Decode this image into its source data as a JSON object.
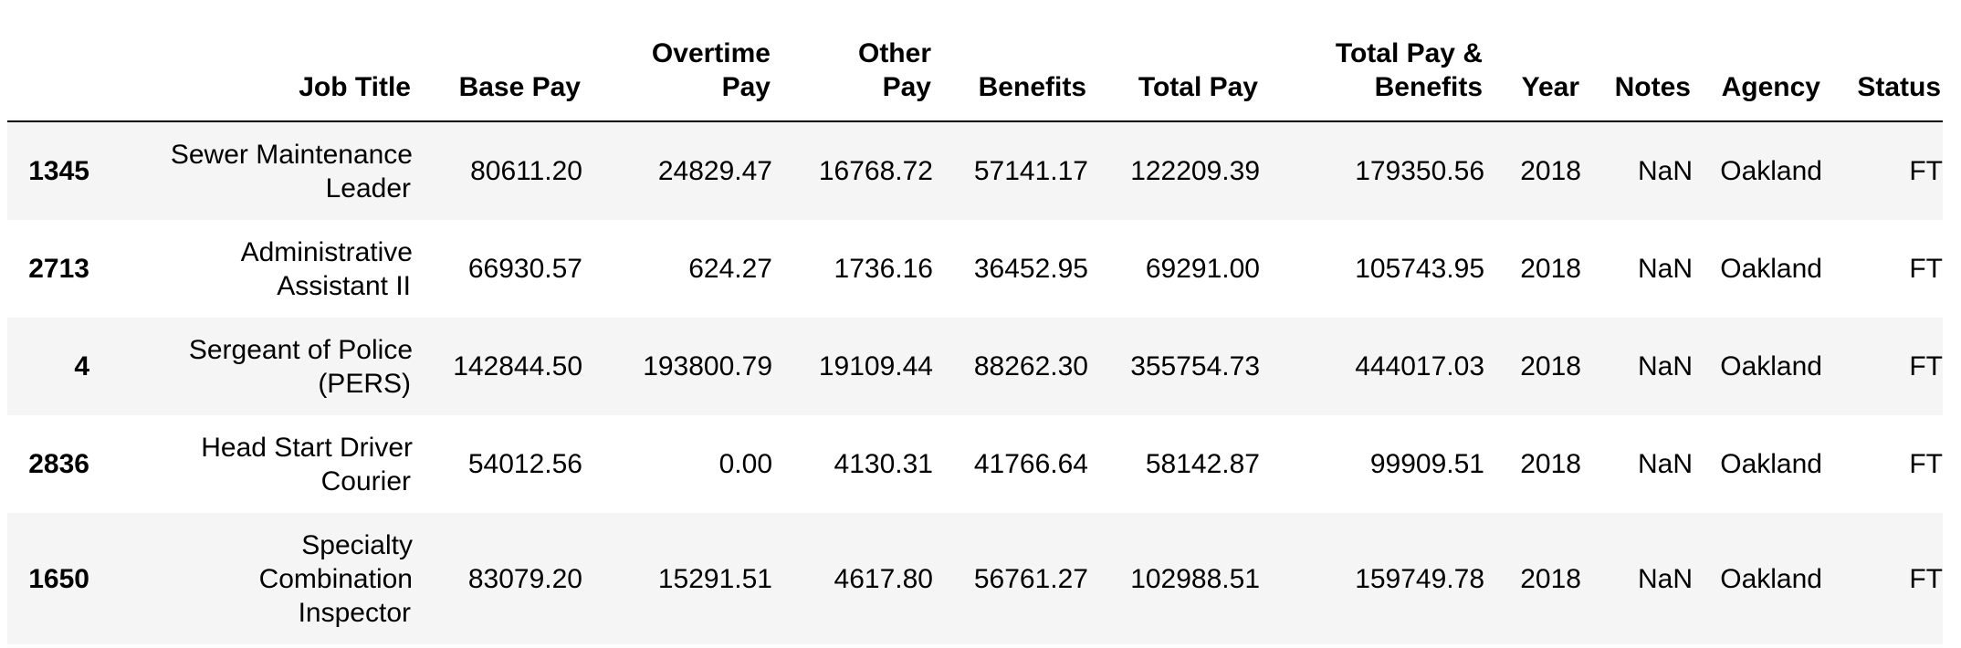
{
  "columns": [
    "",
    "Job Title",
    "Base Pay",
    "Overtime Pay",
    "Other Pay",
    "Benefits",
    "Total Pay",
    "Total Pay & Benefits",
    "Year",
    "Notes",
    "Agency",
    "Status"
  ],
  "header": {
    "job_title": "Job Title",
    "base_pay": "Base Pay",
    "overtime_pay_1": "Overtime",
    "overtime_pay_2": "Pay",
    "other_pay_1": "Other",
    "other_pay_2": "Pay",
    "benefits": "Benefits",
    "total_pay": "Total Pay",
    "total_pay_benefits_1": "Total Pay &",
    "total_pay_benefits_2": "Benefits",
    "year": "Year",
    "notes": "Notes",
    "agency": "Agency",
    "status": "Status"
  },
  "rows": [
    {
      "index": "1345",
      "job_title_1": "Sewer Maintenance",
      "job_title_2": "Leader",
      "job_title_3": "",
      "base_pay": "80611.20",
      "overtime_pay": "24829.47",
      "other_pay": "16768.72",
      "benefits": "57141.17",
      "total_pay": "122209.39",
      "total_pay_benefits": "179350.56",
      "year": "2018",
      "notes": "NaN",
      "agency": "Oakland",
      "status": "FT"
    },
    {
      "index": "2713",
      "job_title_1": "Administrative",
      "job_title_2": "Assistant II",
      "job_title_3": "",
      "base_pay": "66930.57",
      "overtime_pay": "624.27",
      "other_pay": "1736.16",
      "benefits": "36452.95",
      "total_pay": "69291.00",
      "total_pay_benefits": "105743.95",
      "year": "2018",
      "notes": "NaN",
      "agency": "Oakland",
      "status": "FT"
    },
    {
      "index": "4",
      "job_title_1": "Sergeant of Police",
      "job_title_2": "(PERS)",
      "job_title_3": "",
      "base_pay": "142844.50",
      "overtime_pay": "193800.79",
      "other_pay": "19109.44",
      "benefits": "88262.30",
      "total_pay": "355754.73",
      "total_pay_benefits": "444017.03",
      "year": "2018",
      "notes": "NaN",
      "agency": "Oakland",
      "status": "FT"
    },
    {
      "index": "2836",
      "job_title_1": "Head Start Driver",
      "job_title_2": "Courier",
      "job_title_3": "",
      "base_pay": "54012.56",
      "overtime_pay": "0.00",
      "other_pay": "4130.31",
      "benefits": "41766.64",
      "total_pay": "58142.87",
      "total_pay_benefits": "99909.51",
      "year": "2018",
      "notes": "NaN",
      "agency": "Oakland",
      "status": "FT"
    },
    {
      "index": "1650",
      "job_title_1": "Specialty",
      "job_title_2": "Combination",
      "job_title_3": "Inspector",
      "base_pay": "83079.20",
      "overtime_pay": "15291.51",
      "other_pay": "4617.80",
      "benefits": "56761.27",
      "total_pay": "102988.51",
      "total_pay_benefits": "159749.78",
      "year": "2018",
      "notes": "NaN",
      "agency": "Oakland",
      "status": "FT"
    }
  ]
}
